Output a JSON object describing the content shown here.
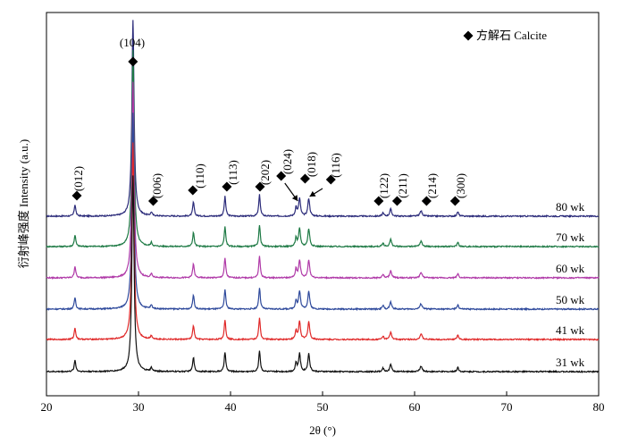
{
  "chart_data": {
    "type": "line",
    "xlabel": "2θ (°)",
    "ylabel": "衍射峰强度 Intensity (a.u.)",
    "xlim": [
      20,
      80
    ],
    "xticks": [
      20,
      30,
      40,
      50,
      60,
      70,
      80
    ],
    "yticks_shown": false,
    "legend": {
      "label": "方解石 Calcite",
      "marker": "diamond",
      "placement": "top-right"
    },
    "peaks": [
      {
        "hkl": "(012)",
        "two_theta": 23.1
      },
      {
        "hkl": "(104)",
        "two_theta": 29.4
      },
      {
        "hkl": "(006)",
        "two_theta": 31.4
      },
      {
        "hkl": "(110)",
        "two_theta": 35.97
      },
      {
        "hkl": "(113)",
        "two_theta": 39.4
      },
      {
        "hkl": "(202)",
        "two_theta": 43.15
      },
      {
        "hkl": "(024)",
        "two_theta": 47.12
      },
      {
        "hkl": "(018)",
        "two_theta": 47.5
      },
      {
        "hkl": "(116)",
        "two_theta": 48.5
      },
      {
        "hkl": "(122)",
        "two_theta": 56.57
      },
      {
        "hkl": "(211)",
        "two_theta": 57.4
      },
      {
        "hkl": "(214)",
        "two_theta": 60.7
      },
      {
        "hkl": "(300)",
        "two_theta": 64.7
      }
    ],
    "series": [
      {
        "name": "80 wk",
        "color": "#2b2b7a"
      },
      {
        "name": "70 wk",
        "color": "#1e7a45"
      },
      {
        "name": "60 wk",
        "color": "#b03aa8"
      },
      {
        "name": "50 wk",
        "color": "#2f4a9c"
      },
      {
        "name": "41 wk",
        "color": "#e02828"
      },
      {
        "name": "31 wk",
        "color": "#111111"
      }
    ],
    "profile": {
      "peak_heights": [
        13,
        220,
        4,
        16,
        22,
        24,
        10,
        20,
        20,
        4,
        8,
        6,
        5
      ],
      "peak_widths": [
        0.1,
        0.14,
        0.1,
        0.1,
        0.1,
        0.1,
        0.1,
        0.12,
        0.12,
        0.1,
        0.12,
        0.14,
        0.1
      ]
    }
  }
}
